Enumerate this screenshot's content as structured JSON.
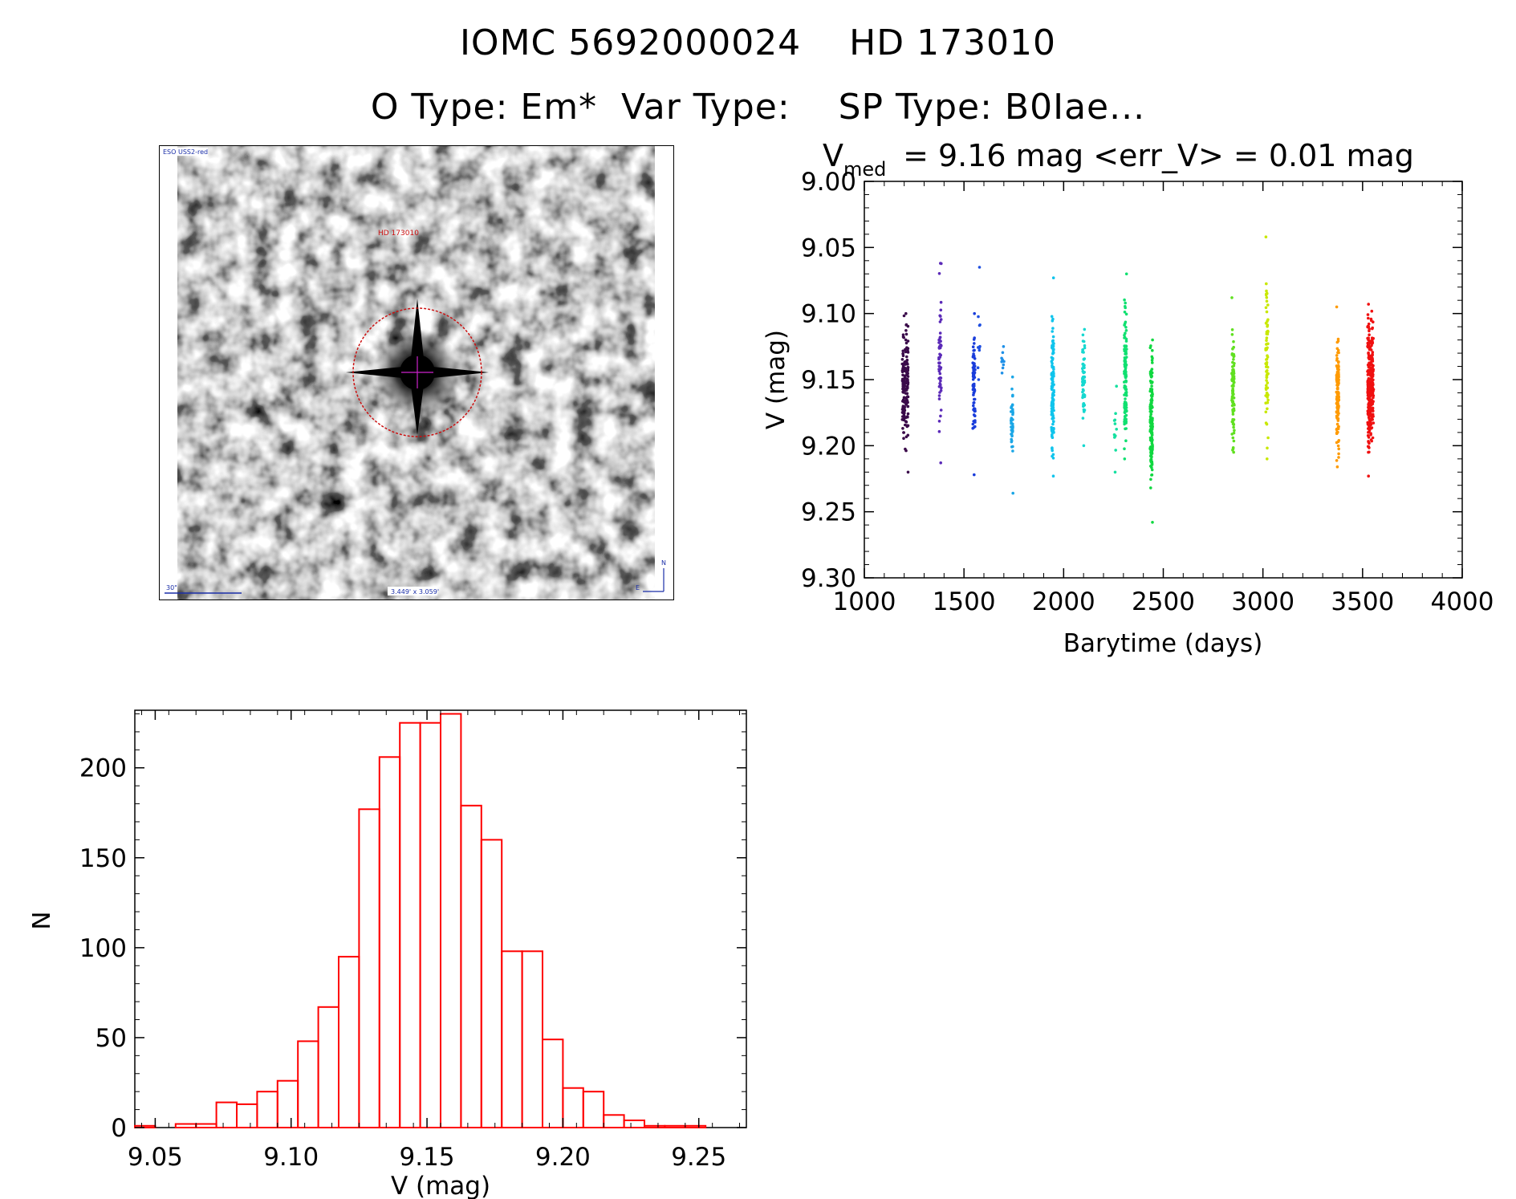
{
  "header": {
    "title_line1": "IOMC 5692000024    HD 173010",
    "title_line2": "O Type: Em*  Var Type:    SP Type: B0Iae..."
  },
  "finder_chart": {
    "survey_label": "ESO USS2-red",
    "object_label": "HD 173010",
    "scale_label": "30\"",
    "field_label": "3.449' x 3.059'",
    "north_label": "N",
    "east_label": "E"
  },
  "chart_data": [
    {
      "type": "scatter",
      "title_prefix": "V",
      "title_sub": "med",
      "title_rest": " = 9.16 mag <err_V> = 0.01 mag",
      "xlabel": "Barytime (days)",
      "ylabel": "V (mag)",
      "xlim": [
        1000,
        4000
      ],
      "ylim": [
        9.3,
        9.0
      ],
      "xticks": [
        1000,
        1500,
        2000,
        2500,
        3000,
        3500,
        4000
      ],
      "yticks": [
        9.0,
        9.05,
        9.1,
        9.15,
        9.2,
        9.25,
        9.3
      ],
      "ytick_labels": [
        "9.00",
        "9.05",
        "9.10",
        "9.15",
        "9.20",
        "9.25",
        "9.30"
      ],
      "series": [
        {
          "x": 1205,
          "color": "#3a0a4a",
          "n": 160,
          "min": 9.1,
          "max": 9.22,
          "mid": 9.155
        },
        {
          "x": 1380,
          "color": "#5b2ab8",
          "n": 55,
          "min": 9.062,
          "max": 9.213,
          "mid": 9.13
        },
        {
          "x": 1550,
          "color": "#1a3ddb",
          "n": 70,
          "min": 9.1,
          "max": 9.222,
          "mid": 9.15
        },
        {
          "x": 1575,
          "color": "#1f4fe0",
          "n": 10,
          "min": 9.065,
          "max": 9.15,
          "mid": 9.11
        },
        {
          "x": 1695,
          "color": "#1e90e8",
          "n": 10,
          "min": 9.125,
          "max": 9.145,
          "mid": 9.135
        },
        {
          "x": 1740,
          "color": "#1aa6e6",
          "n": 40,
          "min": 9.148,
          "max": 9.236,
          "mid": 9.18
        },
        {
          "x": 1945,
          "color": "#10c4ec",
          "n": 120,
          "min": 9.073,
          "max": 9.223,
          "mid": 9.16
        },
        {
          "x": 2100,
          "color": "#16d8d0",
          "n": 60,
          "min": 9.112,
          "max": 9.2,
          "mid": 9.15
        },
        {
          "x": 2260,
          "color": "#14e0a0",
          "n": 12,
          "min": 9.155,
          "max": 9.22,
          "mid": 9.18
        },
        {
          "x": 2310,
          "color": "#10e070",
          "n": 120,
          "min": 9.07,
          "max": 9.21,
          "mid": 9.15
        },
        {
          "x": 2440,
          "color": "#10d840",
          "n": 140,
          "min": 9.12,
          "max": 9.258,
          "mid": 9.18
        },
        {
          "x": 2850,
          "color": "#60e020",
          "n": 90,
          "min": 9.088,
          "max": 9.205,
          "mid": 9.16
        },
        {
          "x": 3020,
          "color": "#c8e800",
          "n": 70,
          "min": 9.042,
          "max": 9.21,
          "mid": 9.14
        },
        {
          "x": 3375,
          "color": "#ff9a00",
          "n": 130,
          "min": 9.095,
          "max": 9.216,
          "mid": 9.16
        },
        {
          "x": 3540,
          "color": "#f01010",
          "n": 300,
          "min": 9.093,
          "max": 9.223,
          "mid": 9.155
        }
      ]
    },
    {
      "type": "bar",
      "title": "",
      "xlabel": "V (mag)",
      "ylabel": "N",
      "xlim": [
        9.0425,
        9.2675
      ],
      "ylim": [
        0,
        232
      ],
      "xticks": [
        9.05,
        9.1,
        9.15,
        9.2,
        9.25
      ],
      "xtick_labels": [
        "9.05",
        "9.10",
        "9.15",
        "9.20",
        "9.25"
      ],
      "yticks": [
        0,
        50,
        100,
        150,
        200
      ],
      "bin_width": 0.0075,
      "bin_starts": [
        9.0425,
        9.05,
        9.0575,
        9.065,
        9.0725,
        9.08,
        9.0875,
        9.095,
        9.1025,
        9.11,
        9.1175,
        9.125,
        9.1325,
        9.14,
        9.1475,
        9.155,
        9.1625,
        9.17,
        9.1775,
        9.185,
        9.1925,
        9.2,
        9.2075,
        9.215,
        9.2225,
        9.23,
        9.2375,
        9.245,
        9.2525,
        9.26
      ],
      "values": [
        1,
        0,
        2,
        2,
        14,
        13,
        20,
        26,
        48,
        67,
        95,
        177,
        206,
        225,
        225,
        230,
        179,
        160,
        98,
        98,
        49,
        22,
        20,
        7,
        4,
        1,
        1,
        1,
        0,
        0
      ],
      "color": "#ff0000"
    }
  ]
}
